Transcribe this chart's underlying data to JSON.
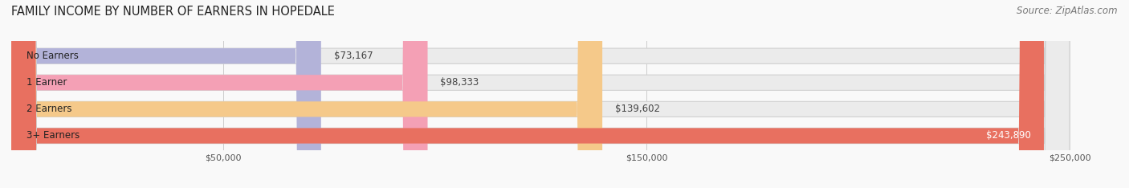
{
  "title": "FAMILY INCOME BY NUMBER OF EARNERS IN HOPEDALE",
  "source": "Source: ZipAtlas.com",
  "categories": [
    "No Earners",
    "1 Earner",
    "2 Earners",
    "3+ Earners"
  ],
  "values": [
    73167,
    98333,
    139602,
    243890
  ],
  "bar_colors": [
    "#b3b3d9",
    "#f4a0b5",
    "#f5c98a",
    "#e87060"
  ],
  "bar_bg_color": "#ebebeb",
  "value_labels": [
    "$73,167",
    "$98,333",
    "$139,602",
    "$243,890"
  ],
  "xlim": [
    0,
    260000
  ],
  "max_bar_val": 250000,
  "xticks": [
    50000,
    150000,
    250000
  ],
  "xtick_labels": [
    "$50,000",
    "$150,000",
    "$250,000"
  ],
  "title_fontsize": 10.5,
  "label_fontsize": 8.5,
  "tick_fontsize": 8,
  "source_fontsize": 8.5,
  "background_color": "#f9f9f9"
}
